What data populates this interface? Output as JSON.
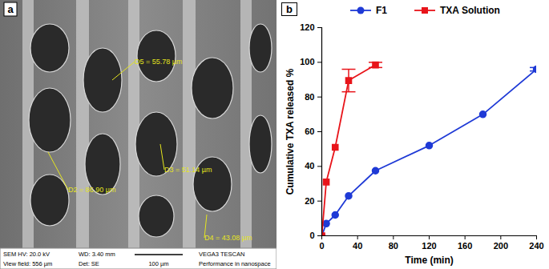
{
  "chart_data": {
    "type": "line",
    "annotations": [
      "b"
    ],
    "x_label": "Time (min)",
    "y_label": "Cumulative TXA released %",
    "series": [
      {
        "name": "F1",
        "color": "#1f3ad6",
        "marker": "circle",
        "line_style": "solid",
        "x": [
          0,
          5,
          15,
          30,
          60,
          120,
          180,
          240
        ],
        "values": [
          0,
          7,
          12,
          23,
          37.5,
          52,
          70,
          96
        ],
        "error": [
          0,
          0,
          0,
          0,
          0,
          0,
          0,
          1
        ]
      },
      {
        "name": "TXA Solution",
        "color": "#e8141a",
        "marker": "square",
        "line_style": "solid",
        "x": [
          0,
          5,
          15,
          30,
          60
        ],
        "values": [
          0,
          31,
          51,
          89.5,
          98.5
        ],
        "error": [
          0,
          0,
          0,
          6.5,
          1.5
        ]
      }
    ],
    "xlim": [
      0,
      240
    ],
    "xticks": [
      0,
      40,
      80,
      120,
      160,
      200,
      240
    ],
    "ylim": [
      0,
      120
    ],
    "yticks": [
      0,
      20,
      40,
      60,
      80,
      100,
      120
    ],
    "grid": false,
    "legend": "top"
  },
  "sem_image": {
    "panel_label": "a",
    "measurements": [
      "D5 = 55.78 µm",
      "D2 = 86.90 µm",
      "D3 = 51.14 µm",
      "D4 = 43.08 µm"
    ],
    "info_bar": {
      "row1": [
        "SEM HV: 20.0 kV",
        "WD: 3.40 mm",
        "VEGA3 TESCAN"
      ],
      "row2": [
        "View field: 556 µm",
        "Det: SE",
        "Performance in nanospace"
      ],
      "scale_bar": "100 µm"
    }
  }
}
